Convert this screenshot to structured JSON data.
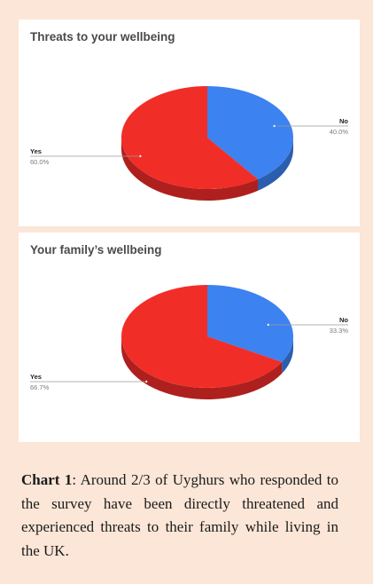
{
  "chart_data": [
    {
      "type": "pie",
      "title": "Threats to your wellbeing",
      "categories": [
        "No",
        "Yes"
      ],
      "values": [
        40.0,
        60.0
      ],
      "labels": [
        "40.0%",
        "60.0%"
      ],
      "colors": [
        "#3c82f0",
        "#f12d28"
      ],
      "style": "3d"
    },
    {
      "type": "pie",
      "title": "Your family’s wellbeing",
      "categories": [
        "No",
        "Yes"
      ],
      "values": [
        33.3,
        66.7
      ],
      "labels": [
        "33.3%",
        "66.7%"
      ],
      "colors": [
        "#3c82f0",
        "#f12d28"
      ],
      "style": "3d"
    }
  ],
  "caption": {
    "label": "Chart 1",
    "text": ": Around 2/3 of Uyghurs who responded to the survey have been directly threatened and experienced threats to their family while living in the UK."
  },
  "background_color": "#fbe6d7"
}
